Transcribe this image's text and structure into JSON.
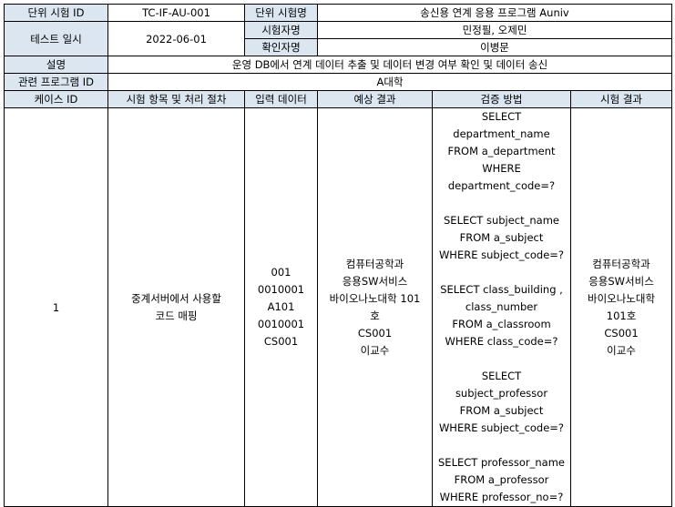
{
  "header": {
    "unit_test_id_label": "단위 시험 ID",
    "unit_test_id": "TC-IF-AU-001",
    "unit_test_name_label": "단위 시험명",
    "unit_test_name": "송신용 연계 응용 프로그램 Auniv",
    "test_date_label": "테스트 일시",
    "test_date": "2022-06-01",
    "tester_label": "시험자명",
    "tester": "민정필, 오제민",
    "reviewer_label": "확인자명",
    "reviewer": "이병문",
    "description_label": "설명",
    "description": "운영 DB에서 연계 데이터 추출 및 데이터 변경 여부 확인 및 데이터 송신",
    "program_id_label": "관련 프로그램 ID",
    "program_id": "A대학"
  },
  "columns": [
    "케이스 ID",
    "시험 항목 및 처리 절차",
    "입력 데이터",
    "예상 결과",
    "검증 방법",
    "시험 결과"
  ],
  "case": {
    "id": "1",
    "procedure": [
      "중계서버에서 사용할",
      "코드 매핑"
    ],
    "input": [
      "001",
      "0010001",
      "A101",
      "0010001",
      "CS001"
    ],
    "expected": [
      "컴퓨터공학과",
      "응용SW서비스",
      "바이오나노대학 101",
      "호",
      "CS001",
      "이교수"
    ],
    "verification": [
      [
        "SELECT department_name",
        "FROM a_department",
        "WHERE department_code=?"
      ],
      [
        "SELECT subject_name",
        "FROM a_subject",
        "WHERE subject_code=?"
      ],
      [
        "SELECT class_building ,",
        "class_number",
        "FROM a_classroom",
        "WHERE class_code=?"
      ],
      [
        "SELECT subject_professor",
        "FROM a_subject",
        "WHERE subject_code=?"
      ],
      [
        "SELECT professor_name",
        "FROM a_professor",
        "WHERE professor_no=?"
      ]
    ],
    "result": [
      "컴퓨터공학과",
      "응용SW서비스",
      "바이오나노대학",
      "101호",
      "CS001",
      "이교수"
    ]
  }
}
